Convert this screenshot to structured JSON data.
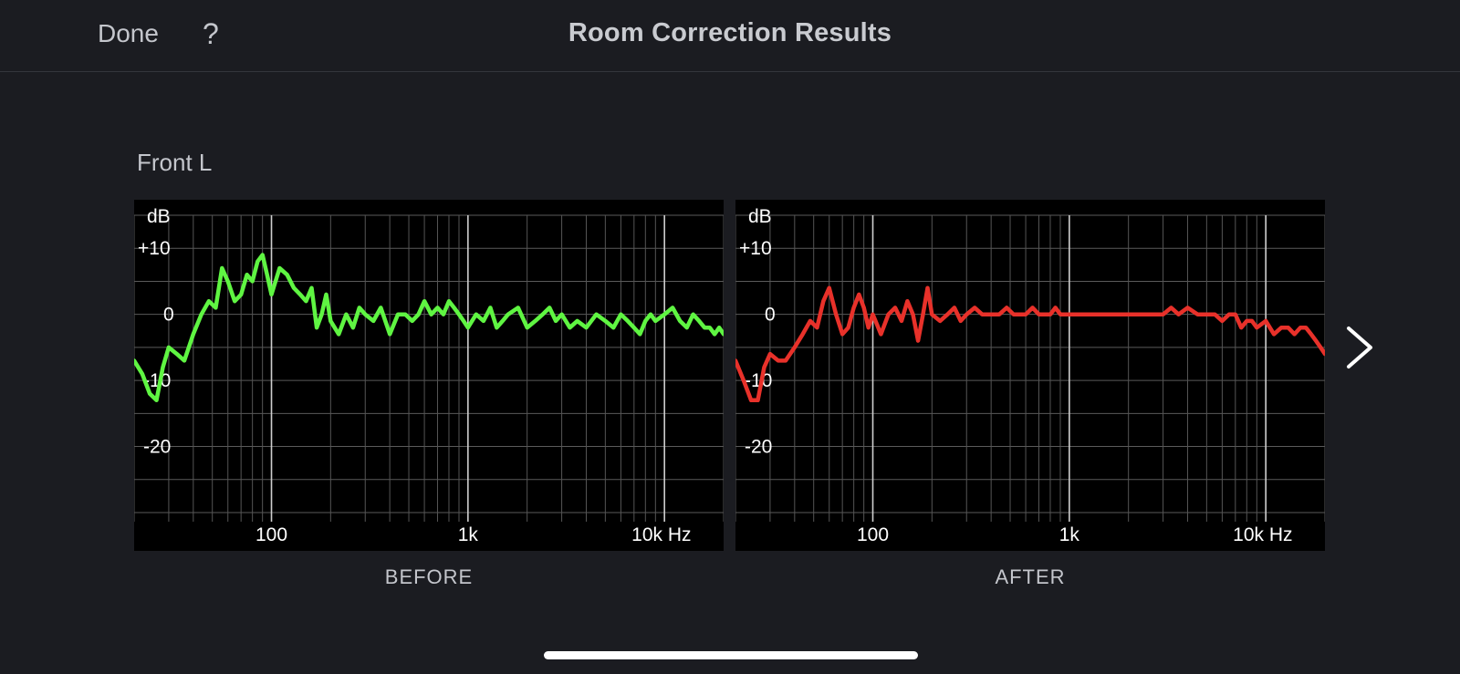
{
  "header": {
    "done_label": "Done",
    "help_label": "?",
    "title": "Room Correction Results"
  },
  "speaker_label": "Front L",
  "colors": {
    "before": "#5ff542",
    "after": "#e8312a",
    "background": "#1b1c21",
    "graph_bg": "#000000"
  },
  "icons": {
    "next": "chevron-right-icon"
  },
  "chart_data": [
    {
      "type": "line",
      "caption": "BEFORE",
      "xscale": "log",
      "xlim": [
        20,
        20000
      ],
      "ylim": [
        -30,
        15
      ],
      "y_unit": "dB",
      "x_tick_labels": [
        {
          "value": 100,
          "label": "100"
        },
        {
          "value": 1000,
          "label": "1k"
        },
        {
          "value": 10000,
          "label": "10k Hz"
        }
      ],
      "y_tick_labels": [
        {
          "value": 10,
          "label": "+10"
        },
        {
          "value": 0,
          "label": "0"
        },
        {
          "value": -10,
          "label": "-10"
        },
        {
          "value": -20,
          "label": "-20"
        }
      ],
      "series": [
        {
          "color": "#5ff542",
          "x": [
            20,
            22,
            24,
            26,
            28,
            30,
            33,
            36,
            40,
            44,
            48,
            52,
            56,
            60,
            65,
            70,
            75,
            80,
            85,
            90,
            95,
            100,
            110,
            120,
            130,
            140,
            150,
            160,
            170,
            180,
            190,
            200,
            220,
            240,
            260,
            280,
            300,
            330,
            360,
            400,
            440,
            480,
            520,
            560,
            600,
            650,
            700,
            750,
            800,
            850,
            900,
            950,
            1000,
            1100,
            1200,
            1300,
            1400,
            1500,
            1600,
            1800,
            2000,
            2200,
            2400,
            2600,
            2800,
            3000,
            3300,
            3600,
            4000,
            4500,
            5000,
            5500,
            6000,
            6500,
            7000,
            7500,
            8000,
            8500,
            9000,
            10000,
            11000,
            12000,
            13000,
            14000,
            15000,
            16000,
            17000,
            18000,
            19000,
            20000
          ],
          "y": [
            -7,
            -9,
            -12,
            -13,
            -8,
            -5,
            -6,
            -7,
            -3,
            0,
            2,
            1,
            7,
            5,
            2,
            3,
            6,
            5,
            8,
            9,
            6,
            3,
            7,
            6,
            4,
            3,
            2,
            4,
            -2,
            0,
            3,
            -1,
            -3,
            0,
            -2,
            1,
            0,
            -1,
            1,
            -3,
            0,
            0,
            -1,
            0,
            2,
            0,
            1,
            0,
            2,
            1,
            0,
            -1,
            -2,
            0,
            -1,
            1,
            -2,
            -1,
            0,
            1,
            -2,
            -1,
            0,
            1,
            -1,
            0,
            -2,
            -1,
            -2,
            0,
            -1,
            -2,
            0,
            -1,
            -2,
            -3,
            -1,
            0,
            -1,
            0,
            1,
            -1,
            -2,
            0,
            -1,
            -2,
            -2,
            -3,
            -2,
            -3
          ]
        }
      ]
    },
    {
      "type": "line",
      "caption": "AFTER",
      "xscale": "log",
      "xlim": [
        20,
        20000
      ],
      "ylim": [
        -30,
        15
      ],
      "y_unit": "dB",
      "x_tick_labels": [
        {
          "value": 100,
          "label": "100"
        },
        {
          "value": 1000,
          "label": "1k"
        },
        {
          "value": 10000,
          "label": "10k Hz"
        }
      ],
      "y_tick_labels": [
        {
          "value": 10,
          "label": "+10"
        },
        {
          "value": 0,
          "label": "0"
        },
        {
          "value": -10,
          "label": "-10"
        },
        {
          "value": -20,
          "label": "-20"
        }
      ],
      "series": [
        {
          "color": "#e8312a",
          "x": [
            20,
            22,
            24,
            26,
            28,
            30,
            33,
            36,
            40,
            44,
            48,
            52,
            56,
            60,
            65,
            70,
            75,
            80,
            85,
            90,
            95,
            100,
            110,
            120,
            130,
            140,
            150,
            160,
            170,
            180,
            190,
            200,
            220,
            240,
            260,
            280,
            300,
            330,
            360,
            400,
            440,
            480,
            520,
            560,
            600,
            650,
            700,
            750,
            800,
            850,
            900,
            950,
            1000,
            1100,
            1200,
            1300,
            1400,
            1500,
            1600,
            1800,
            2000,
            2200,
            2400,
            2600,
            2800,
            3000,
            3300,
            3600,
            4000,
            4500,
            5000,
            5500,
            6000,
            6500,
            7000,
            7500,
            8000,
            8500,
            9000,
            10000,
            11000,
            12000,
            13000,
            14000,
            15000,
            16000,
            17000,
            18000,
            19000,
            20000
          ],
          "y": [
            -7,
            -10,
            -13,
            -13,
            -8,
            -6,
            -7,
            -7,
            -5,
            -3,
            -1,
            -2,
            2,
            4,
            0,
            -3,
            -2,
            1,
            3,
            1,
            -2,
            0,
            -3,
            0,
            1,
            -1,
            2,
            0,
            -4,
            0,
            4,
            0,
            -1,
            0,
            1,
            -1,
            0,
            1,
            0,
            0,
            0,
            1,
            0,
            0,
            0,
            1,
            0,
            0,
            0,
            1,
            0,
            0,
            0,
            0,
            0,
            0,
            0,
            0,
            0,
            0,
            0,
            0,
            0,
            0,
            0,
            0,
            1,
            0,
            1,
            0,
            0,
            0,
            -1,
            0,
            0,
            -2,
            -1,
            -1,
            -2,
            -1,
            -3,
            -2,
            -2,
            -3,
            -2,
            -2,
            -3,
            -4,
            -5,
            -6
          ]
        }
      ]
    }
  ],
  "captions": {
    "before": "BEFORE",
    "after": "AFTER"
  }
}
